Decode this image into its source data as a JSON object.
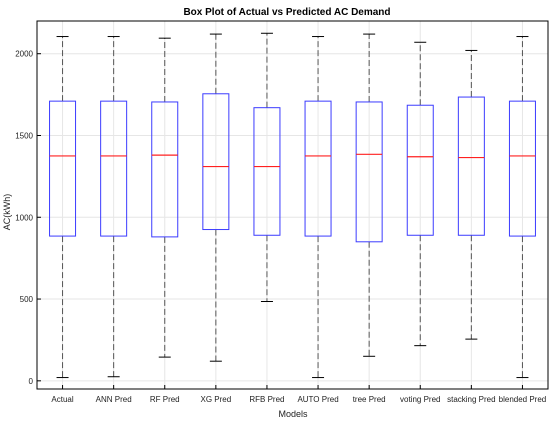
{
  "chart_data": {
    "type": "box",
    "title": "Box Plot of Actual vs Predicted AC Demand",
    "xlabel": "Models",
    "ylabel": "AC(kWh)",
    "ylim": [
      -50,
      2200
    ],
    "yticks": [
      0,
      500,
      1000,
      1500,
      2000
    ],
    "grid": true,
    "colors": {
      "box": "#3b3bff",
      "median": "#ff2020",
      "whisker": "#555555",
      "grid": "#e6e6e6"
    },
    "categories": [
      "Actual",
      "ANN Pred",
      "RF Pred",
      "XG Pred",
      "RFB Pred",
      "AUTO Pred",
      "tree Pred",
      "voting Pred",
      "stacking Pred",
      "blended Pred"
    ],
    "boxes": [
      {
        "min": 20,
        "q1": 885,
        "median": 1375,
        "q3": 1710,
        "max": 2105
      },
      {
        "min": 25,
        "q1": 885,
        "median": 1375,
        "q3": 1710,
        "max": 2105
      },
      {
        "min": 145,
        "q1": 880,
        "median": 1380,
        "q3": 1705,
        "max": 2095
      },
      {
        "min": 120,
        "q1": 925,
        "median": 1310,
        "q3": 1755,
        "max": 2120
      },
      {
        "min": 485,
        "q1": 890,
        "median": 1310,
        "q3": 1670,
        "max": 2125
      },
      {
        "min": 20,
        "q1": 885,
        "median": 1375,
        "q3": 1710,
        "max": 2105
      },
      {
        "min": 150,
        "q1": 850,
        "median": 1385,
        "q3": 1705,
        "max": 2120
      },
      {
        "min": 215,
        "q1": 890,
        "median": 1370,
        "q3": 1685,
        "max": 2070
      },
      {
        "min": 255,
        "q1": 890,
        "median": 1365,
        "q3": 1735,
        "max": 2020
      },
      {
        "min": 20,
        "q1": 885,
        "median": 1375,
        "q3": 1710,
        "max": 2105
      }
    ]
  }
}
